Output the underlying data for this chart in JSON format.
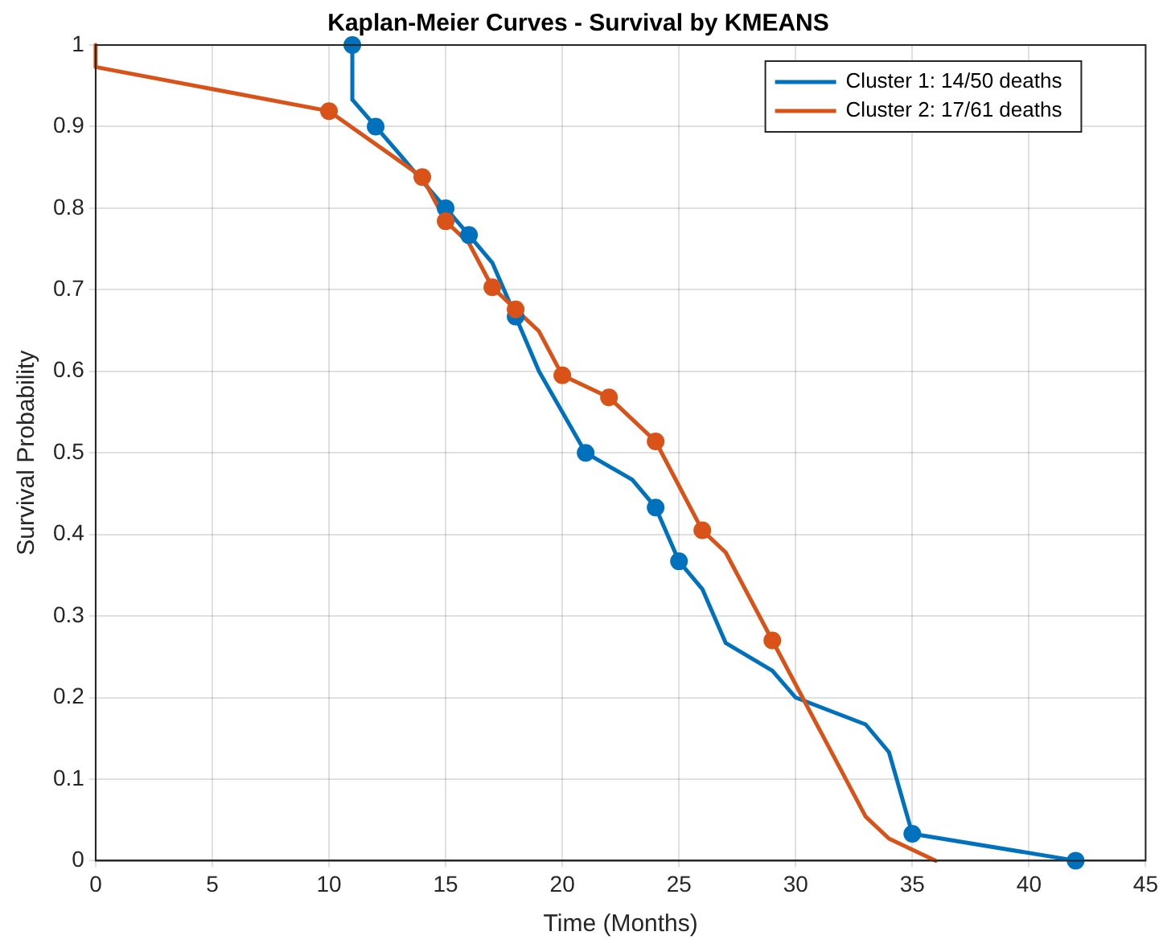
{
  "chart_data": {
    "type": "line",
    "title": "Kaplan-Meier Curves - Survival by KMEANS",
    "xlabel": "Time (Months)",
    "ylabel": "Survival Probability",
    "xlim": [
      0,
      45
    ],
    "xticks": [
      0,
      5,
      10,
      15,
      20,
      25,
      30,
      35,
      40,
      45
    ],
    "ylim": [
      0,
      1
    ],
    "yticks": [
      0,
      0.1,
      0.2,
      0.3,
      0.4,
      0.5,
      0.6,
      0.7,
      0.8,
      0.9,
      1
    ],
    "grid": true,
    "legend": "top right",
    "line_style": "solid",
    "series": [
      {
        "name": "Cluster 1: 14/50 deaths",
        "color": "#0072bd",
        "marker": "none",
        "x": [
          11,
          11,
          12,
          13,
          14,
          15,
          16,
          17,
          18,
          19,
          21,
          23,
          24,
          25,
          26,
          27,
          29,
          30,
          33,
          34,
          35,
          42
        ],
        "values": [
          1,
          0.933,
          0.9,
          0.867,
          0.833,
          0.8,
          0.767,
          0.733,
          0.667,
          0.6,
          0.5,
          0.467,
          0.433,
          0.367,
          0.333,
          0.267,
          0.233,
          0.2,
          0.167,
          0.133,
          0.033,
          0
        ]
      },
      {
        "name": "Cluster 2: 17/61 deaths",
        "color": "#d95319",
        "marker": "none",
        "x": [
          0,
          0,
          10,
          14,
          15,
          16,
          17,
          18,
          19,
          20,
          22,
          24,
          26,
          27,
          29,
          33,
          34,
          36
        ],
        "values": [
          1,
          0.973,
          0.919,
          0.838,
          0.784,
          0.757,
          0.703,
          0.676,
          0.649,
          0.595,
          0.568,
          0.514,
          0.405,
          0.378,
          0.27,
          0.054,
          0.027,
          0
        ]
      },
      {
        "type": "scatter",
        "color": "#0072bd",
        "marker": "circle",
        "x": [
          11,
          12,
          15,
          16,
          18,
          21,
          24,
          25,
          35,
          42
        ],
        "values": [
          1,
          0.9,
          0.8,
          0.767,
          0.667,
          0.5,
          0.433,
          0.367,
          0.033,
          0
        ]
      },
      {
        "type": "scatter",
        "color": "#d95319",
        "marker": "circle",
        "x": [
          10,
          14,
          15,
          17,
          18,
          20,
          22,
          24,
          26,
          29
        ],
        "values": [
          0.919,
          0.838,
          0.784,
          0.703,
          0.676,
          0.595,
          0.568,
          0.514,
          0.405,
          0.27
        ]
      }
    ]
  }
}
